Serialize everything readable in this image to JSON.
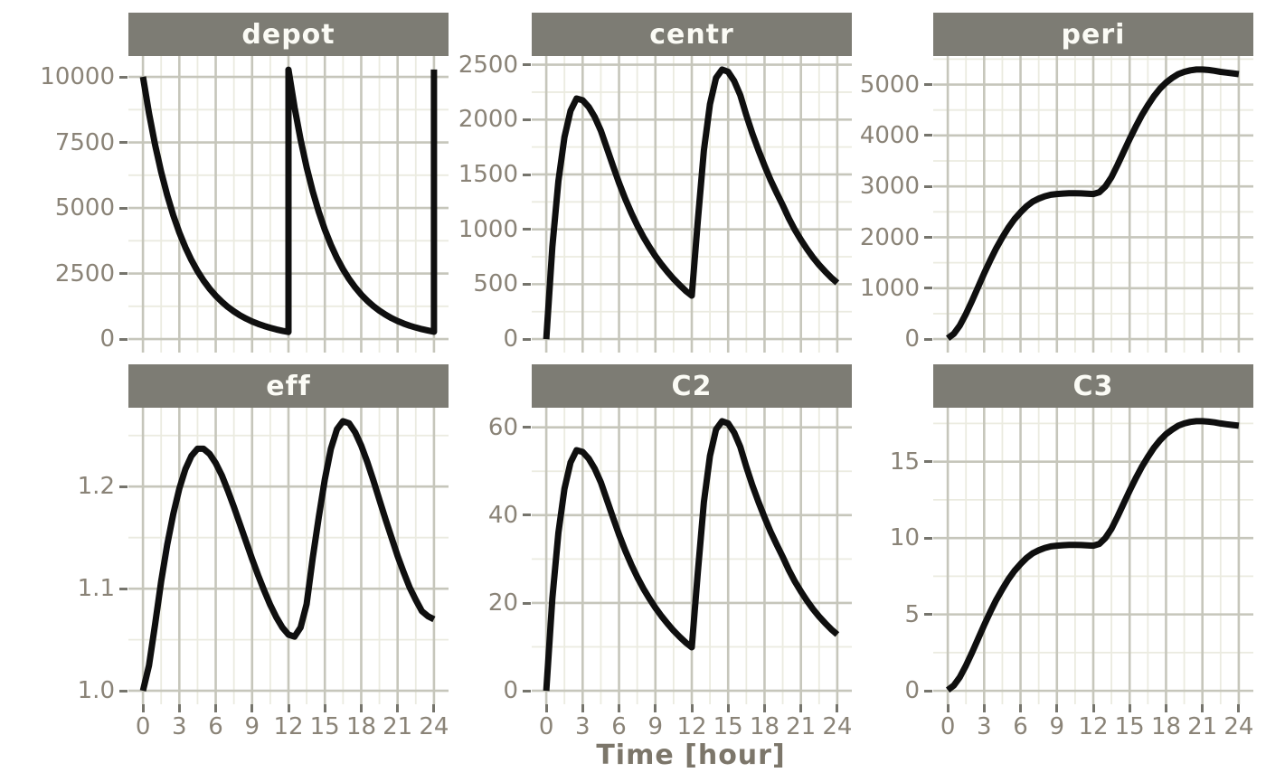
{
  "figure": {
    "xlabel": "Time [hour]",
    "x_ticks": {
      "values": [
        0,
        3,
        6,
        9,
        12,
        15,
        18,
        21,
        24
      ],
      "labels": [
        "0",
        "3",
        "6",
        "9",
        "12",
        "15",
        "18",
        "21",
        "24"
      ]
    },
    "colors": {
      "background": "#ffffff",
      "strip_bg": "#7d7c74",
      "strip_text": "#fbfbf5",
      "grid_major": "#c6c6bb",
      "grid_minor": "#ebebe0",
      "curve": "#0f0f0f",
      "tick_label": "#8a8377",
      "tick_mark": "#75746c",
      "axis_title": "#7c766a"
    }
  },
  "chart_data": [
    {
      "type": "line",
      "title": "depot",
      "xlabel": "Time [hour]",
      "xlim": [
        -1.2,
        25.2
      ],
      "ylim": [
        -514,
        10794
      ],
      "y_ticks": {
        "values": [
          0,
          2500,
          5000,
          7500,
          10000
        ],
        "labels": [
          "0",
          "2500",
          "5000",
          "7500",
          "10000"
        ]
      },
      "x": [
        0,
        0.5,
        1,
        1.5,
        2,
        2.5,
        3,
        3.5,
        4,
        4.5,
        5,
        5.5,
        6,
        6.5,
        7,
        7.5,
        8,
        8.5,
        9,
        9.5,
        10,
        10.5,
        11,
        11.5,
        12,
        12,
        12.5,
        13,
        13.5,
        14,
        14.5,
        15,
        15.5,
        16,
        16.5,
        17,
        17.5,
        18,
        18.5,
        19,
        19.5,
        20,
        20.5,
        21,
        21.5,
        22,
        22.5,
        23,
        23.5,
        24,
        24
      ],
      "y": [
        10000,
        8607,
        7408,
        6376,
        5488,
        4724,
        4066,
        3499,
        3012,
        2592,
        2231,
        1920,
        1653,
        1423,
        1225,
        1054,
        907,
        781,
        672,
        578,
        498,
        429,
        369,
        317,
        273,
        10273,
        8842,
        7610,
        6550,
        5637,
        4852,
        4176,
        3594,
        3093,
        2662,
        2291,
        1972,
        1697,
        1461,
        1257,
        1082,
        931,
        801,
        690,
        594,
        511,
        440,
        378,
        326,
        280,
        10280
      ]
    },
    {
      "type": "line",
      "title": "centr",
      "xlabel": "Time [hour]",
      "xlim": [
        -1.2,
        25.2
      ],
      "ylim": [
        -123,
        2579
      ],
      "y_ticks": {
        "values": [
          0,
          500,
          1000,
          1500,
          2000,
          2500
        ],
        "labels": [
          "0",
          "500",
          "1000",
          "1500",
          "2000",
          "2500"
        ]
      },
      "x": [
        0,
        0.5,
        1,
        1.5,
        2,
        2.5,
        3,
        3.5,
        4,
        4.5,
        5,
        5.5,
        6,
        6.5,
        7,
        7.5,
        8,
        8.5,
        9,
        9.5,
        10,
        10.5,
        11,
        11.5,
        12,
        12.5,
        13,
        13.5,
        14,
        14.5,
        15,
        15.5,
        16,
        16.5,
        17,
        17.5,
        18,
        18.5,
        19,
        19.5,
        20,
        20.5,
        21,
        21.5,
        22,
        22.5,
        23,
        23.5,
        24
      ],
      "y": [
        0,
        840,
        1440,
        1840,
        2080,
        2192,
        2176,
        2116,
        2024,
        1900,
        1740,
        1580,
        1424,
        1280,
        1152,
        1036,
        932,
        840,
        756,
        680,
        612,
        548,
        492,
        440,
        396,
        1080,
        1720,
        2140,
        2380,
        2456,
        2436,
        2352,
        2224,
        2040,
        1872,
        1720,
        1580,
        1448,
        1332,
        1220,
        1100,
        996,
        904,
        820,
        744,
        676,
        616,
        560,
        512
      ]
    },
    {
      "type": "line",
      "title": "peri",
      "xlabel": "Time [hour]",
      "xlim": [
        -1.2,
        25.2
      ],
      "ylim": [
        -265,
        5560
      ],
      "y_ticks": {
        "values": [
          0,
          1000,
          2000,
          3000,
          4000,
          5000
        ],
        "labels": [
          "0",
          "1000",
          "2000",
          "3000",
          "4000",
          "5000"
        ]
      },
      "x": [
        0,
        0.5,
        1,
        1.5,
        2,
        2.5,
        3,
        3.5,
        4,
        4.5,
        5,
        5.5,
        6,
        6.5,
        7,
        7.5,
        8,
        8.5,
        9,
        9.5,
        10,
        10.5,
        11,
        11.5,
        12,
        12.5,
        13,
        13.5,
        14,
        14.5,
        15,
        15.5,
        16,
        16.5,
        17,
        17.5,
        18,
        18.5,
        19,
        19.5,
        20,
        20.5,
        21,
        21.5,
        22,
        22.5,
        23,
        23.5,
        24
      ],
      "y": [
        15,
        105,
        270,
        495,
        750,
        1020,
        1290,
        1545,
        1785,
        1995,
        2190,
        2355,
        2490,
        2610,
        2700,
        2760,
        2805,
        2835,
        2850,
        2859,
        2865,
        2865,
        2862,
        2856,
        2850,
        2886,
        3000,
        3180,
        3420,
        3675,
        3930,
        4170,
        4395,
        4590,
        4770,
        4920,
        5040,
        5130,
        5205,
        5250,
        5280,
        5295,
        5295,
        5286,
        5271,
        5250,
        5235,
        5220,
        5205
      ]
    },
    {
      "type": "line",
      "title": "eff",
      "xlabel": "Time [hour]",
      "xlim": [
        -1.2,
        25.2
      ],
      "ylim": [
        0.9868,
        1.2772
      ],
      "y_ticks": {
        "values": [
          1.0,
          1.1,
          1.2
        ],
        "labels": [
          "1.0",
          "1.1",
          "1.2"
        ]
      },
      "x": [
        0,
        0.5,
        1,
        1.5,
        2,
        2.5,
        3,
        3.5,
        4,
        4.5,
        5,
        5.5,
        6,
        6.5,
        7,
        7.5,
        8,
        8.5,
        9,
        9.5,
        10,
        10.5,
        11,
        11.5,
        12,
        12.5,
        13,
        13.5,
        14,
        14.5,
        15,
        15.5,
        16,
        16.5,
        17,
        17.5,
        18,
        18.5,
        19,
        19.5,
        20,
        20.5,
        21,
        21.5,
        22,
        22.5,
        23,
        23.5,
        24
      ],
      "y": [
        1.0,
        1.025,
        1.065,
        1.107,
        1.143,
        1.173,
        1.198,
        1.217,
        1.23,
        1.237,
        1.237,
        1.232,
        1.223,
        1.211,
        1.196,
        1.18,
        1.163,
        1.146,
        1.129,
        1.113,
        1.098,
        1.084,
        1.072,
        1.062,
        1.055,
        1.053,
        1.062,
        1.085,
        1.13,
        1.17,
        1.207,
        1.237,
        1.256,
        1.264,
        1.262,
        1.253,
        1.24,
        1.224,
        1.206,
        1.187,
        1.168,
        1.15,
        1.132,
        1.116,
        1.101,
        1.089,
        1.078,
        1.073,
        1.07
      ]
    },
    {
      "type": "line",
      "title": "C2",
      "xlabel": "Time [hour]",
      "xlim": [
        -1.2,
        25.2
      ],
      "ylim": [
        -3.07,
        64.47
      ],
      "y_ticks": {
        "values": [
          0,
          20,
          40,
          60
        ],
        "labels": [
          "0",
          "20",
          "40",
          "60"
        ]
      },
      "x": [
        0,
        0.5,
        1,
        1.5,
        2,
        2.5,
        3,
        3.5,
        4,
        4.5,
        5,
        5.5,
        6,
        6.5,
        7,
        7.5,
        8,
        8.5,
        9,
        9.5,
        10,
        10.5,
        11,
        11.5,
        12,
        12.5,
        13,
        13.5,
        14,
        14.5,
        15,
        15.5,
        16,
        16.5,
        17,
        17.5,
        18,
        18.5,
        19,
        19.5,
        20,
        20.5,
        21,
        21.5,
        22,
        22.5,
        23,
        23.5,
        24
      ],
      "y": [
        0,
        21,
        36,
        46,
        52,
        54.8,
        54.4,
        52.9,
        50.6,
        47.5,
        43.5,
        39.5,
        35.6,
        32,
        28.8,
        25.9,
        23.3,
        21,
        18.9,
        17,
        15.3,
        13.7,
        12.3,
        11,
        9.9,
        27,
        43,
        53.5,
        59.5,
        61.4,
        60.9,
        58.8,
        55.6,
        51,
        46.8,
        43,
        39.5,
        36.2,
        33.3,
        30.5,
        27.5,
        24.9,
        22.6,
        20.5,
        18.6,
        16.9,
        15.4,
        14,
        12.8
      ]
    },
    {
      "type": "line",
      "title": "C3",
      "xlabel": "Time [hour]",
      "xlim": [
        -1.2,
        25.2
      ],
      "ylim": [
        -0.88,
        18.53
      ],
      "y_ticks": {
        "values": [
          0,
          5,
          10,
          15
        ],
        "labels": [
          "0",
          "5",
          "10",
          "15"
        ]
      },
      "x": [
        0,
        0.5,
        1,
        1.5,
        2,
        2.5,
        3,
        3.5,
        4,
        4.5,
        5,
        5.5,
        6,
        6.5,
        7,
        7.5,
        8,
        8.5,
        9,
        9.5,
        10,
        10.5,
        11,
        11.5,
        12,
        12.5,
        13,
        13.5,
        14,
        14.5,
        15,
        15.5,
        16,
        16.5,
        17,
        17.5,
        18,
        18.5,
        19,
        19.5,
        20,
        20.5,
        21,
        21.5,
        22,
        22.5,
        23,
        23.5,
        24
      ],
      "y": [
        0.05,
        0.35,
        0.9,
        1.65,
        2.5,
        3.4,
        4.3,
        5.15,
        5.95,
        6.65,
        7.3,
        7.85,
        8.3,
        8.7,
        9,
        9.2,
        9.35,
        9.45,
        9.5,
        9.53,
        9.55,
        9.55,
        9.54,
        9.52,
        9.5,
        9.62,
        10,
        10.6,
        11.4,
        12.25,
        13.1,
        13.9,
        14.65,
        15.3,
        15.9,
        16.4,
        16.8,
        17.1,
        17.35,
        17.5,
        17.6,
        17.65,
        17.65,
        17.62,
        17.57,
        17.5,
        17.45,
        17.4,
        17.35
      ]
    }
  ]
}
